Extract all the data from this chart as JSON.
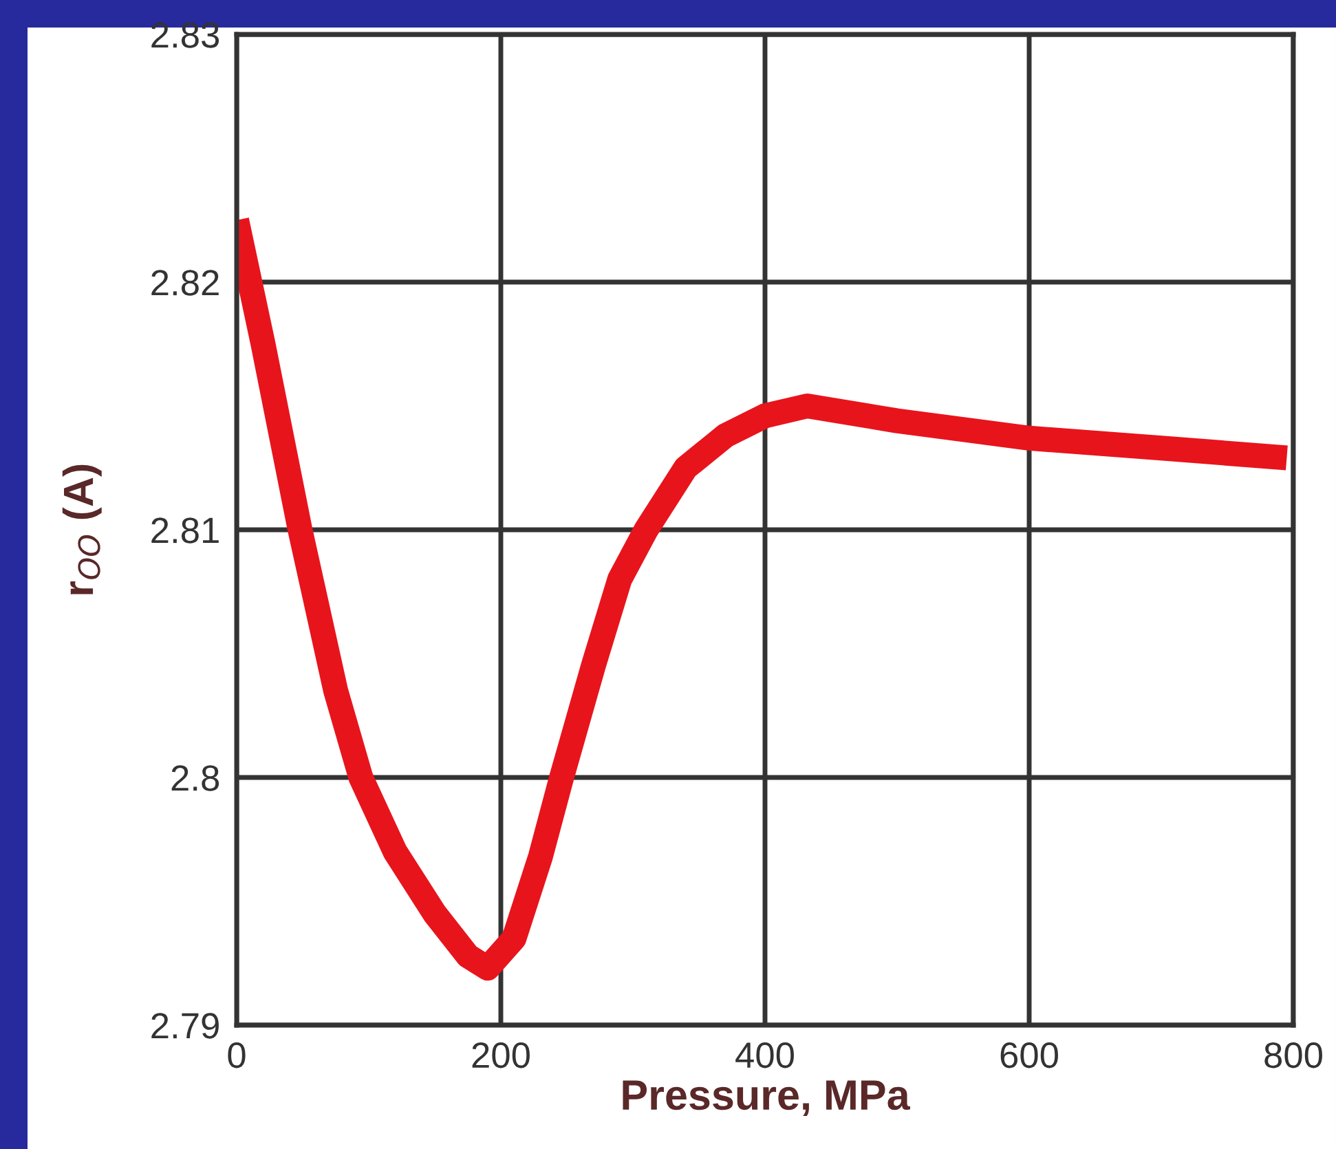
{
  "chart_data": {
    "type": "line",
    "xlabel": "Pressure, MPa",
    "ylabel": "r$_{OO}$ (A)",
    "xlim": [
      0,
      800
    ],
    "xticks": [
      0,
      200,
      400,
      600,
      800
    ],
    "ylim": [
      2.79,
      2.83
    ],
    "yticks": [
      2.79,
      2.8,
      2.81,
      2.82,
      2.83
    ],
    "grid": true,
    "line_style": "solid",
    "marker": "none",
    "series": [
      {
        "color": "#e8141c",
        "x": [
          0,
          20,
          48,
          75,
          94,
          120,
          150,
          175,
          190,
          210,
          230,
          246,
          270,
          290,
          310,
          340,
          370,
          400,
          432,
          500,
          600,
          700,
          795
        ],
        "values": [
          2.8225,
          2.8175,
          2.81,
          2.8035,
          2.8,
          2.797,
          2.7945,
          2.7928,
          2.7923,
          2.7935,
          2.7968,
          2.8,
          2.8045,
          2.808,
          2.81,
          2.8125,
          2.8138,
          2.8146,
          2.815,
          2.8144,
          2.8137,
          2.8133,
          2.8129
        ]
      }
    ]
  }
}
